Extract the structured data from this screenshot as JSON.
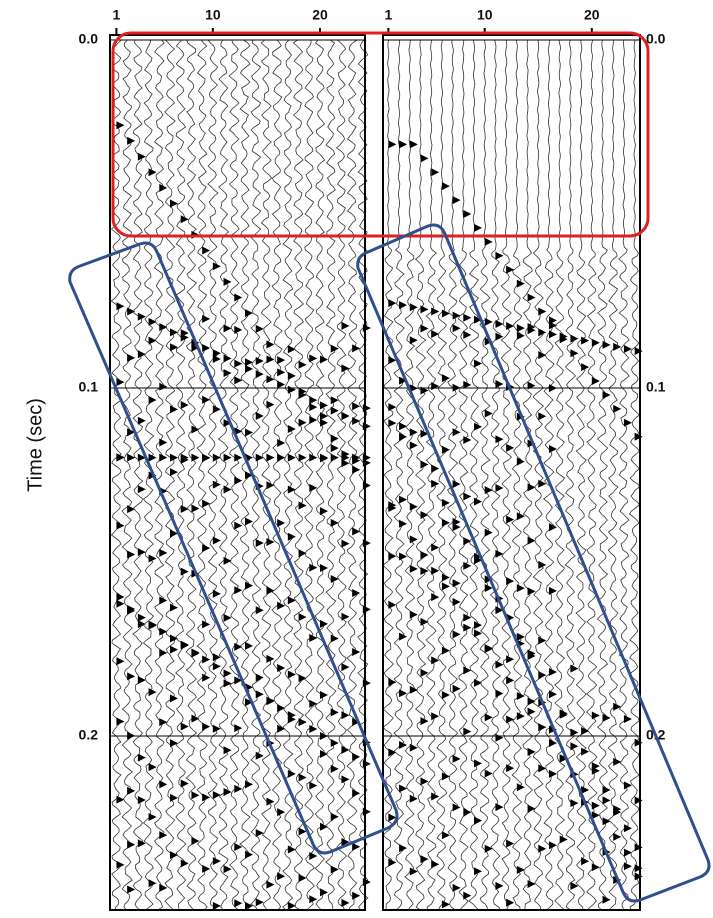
{
  "chart_data": [
    {
      "type": "wiggle",
      "ylabel": "Time (sec)",
      "xlim": [
        0.4,
        24.2
      ],
      "xticks": [
        1,
        10,
        20
      ],
      "ylim": [
        0,
        0.25
      ],
      "yticks": [
        {
          "value": 0,
          "label": "0.0"
        },
        0.1,
        0.2
      ],
      "ytick_side": "left",
      "grid": true
    },
    {
      "type": "wiggle",
      "xlim": [
        0.5,
        24.5
      ],
      "xticks": [
        1,
        10,
        20
      ],
      "ylim": [
        0,
        0.25
      ],
      "yticks": [
        {
          "value": 0,
          "label": "0.0"
        },
        0.1,
        0.2
      ],
      "ytick_side": "right",
      "grid": true
    }
  ]
}
